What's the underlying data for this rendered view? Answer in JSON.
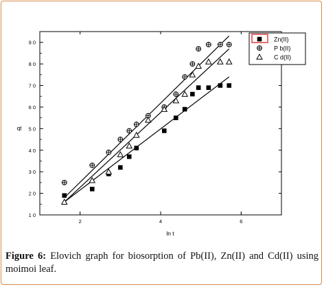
{
  "chart_data": {
    "type": "scatter",
    "xlabel": "ln t",
    "ylabel": "qt",
    "xlim": [
      1,
      7
    ],
    "ylim": [
      10,
      95
    ],
    "x_ticks": [
      2,
      4,
      6
    ],
    "y_ticks": [
      10,
      20,
      30,
      40,
      50,
      60,
      70,
      80,
      90
    ],
    "y_tick_labels": [
      "1 0",
      "2 0",
      "3 0",
      "4 0",
      "5 0",
      "6 0",
      "7 0",
      "8 0",
      "9 0"
    ],
    "legend_position": "top-right",
    "series": [
      {
        "name": "Zn(II)",
        "label": "Zn(II)",
        "marker": "filled-square",
        "color": "#000000",
        "x": [
          1.61,
          2.3,
          2.71,
          3.0,
          3.22,
          3.4,
          4.09,
          4.38,
          4.6,
          4.79,
          4.94,
          5.19,
          5.48,
          5.7
        ],
        "y": [
          19,
          22,
          29,
          32,
          37,
          41,
          49,
          55,
          59,
          66,
          69,
          69,
          70,
          70
        ],
        "fit_line": [
          [
            1.61,
            16
          ],
          [
            5.7,
            74
          ]
        ]
      },
      {
        "name": "Pb(II)",
        "label": "P b(II)",
        "marker": "circle-cross",
        "color": "#000000",
        "x": [
          1.61,
          2.3,
          2.71,
          3.0,
          3.22,
          3.4,
          3.69,
          4.09,
          4.38,
          4.6,
          4.79,
          4.94,
          5.19,
          5.48,
          5.7
        ],
        "y": [
          25,
          33,
          39,
          45,
          49,
          52,
          56,
          60,
          66,
          74,
          80,
          87,
          89,
          89,
          89
        ],
        "fit_line": [
          [
            1.61,
            18
          ],
          [
            5.7,
            93
          ]
        ]
      },
      {
        "name": "Cd(II)",
        "label": "C d(II)",
        "marker": "open-triangle",
        "color": "#000000",
        "x": [
          1.61,
          2.3,
          2.71,
          3.0,
          3.22,
          3.4,
          3.69,
          4.09,
          4.38,
          4.6,
          4.79,
          4.94,
          5.19,
          5.48,
          5.7
        ],
        "y": [
          16,
          26,
          30,
          38,
          42,
          47,
          54,
          59,
          63,
          66,
          75,
          79,
          81,
          81,
          81
        ],
        "fit_line": [
          [
            1.61,
            16
          ],
          [
            5.7,
            87
          ]
        ]
      }
    ]
  },
  "caption": {
    "label": "Figure 6:",
    "text": " Elovich graph for biosorption of Pb(II), Zn(II) and Cd(II) using moimoi leaf."
  },
  "colors": {
    "frame_border": "#d28a4e",
    "legend_highlight": "#e0201e"
  }
}
